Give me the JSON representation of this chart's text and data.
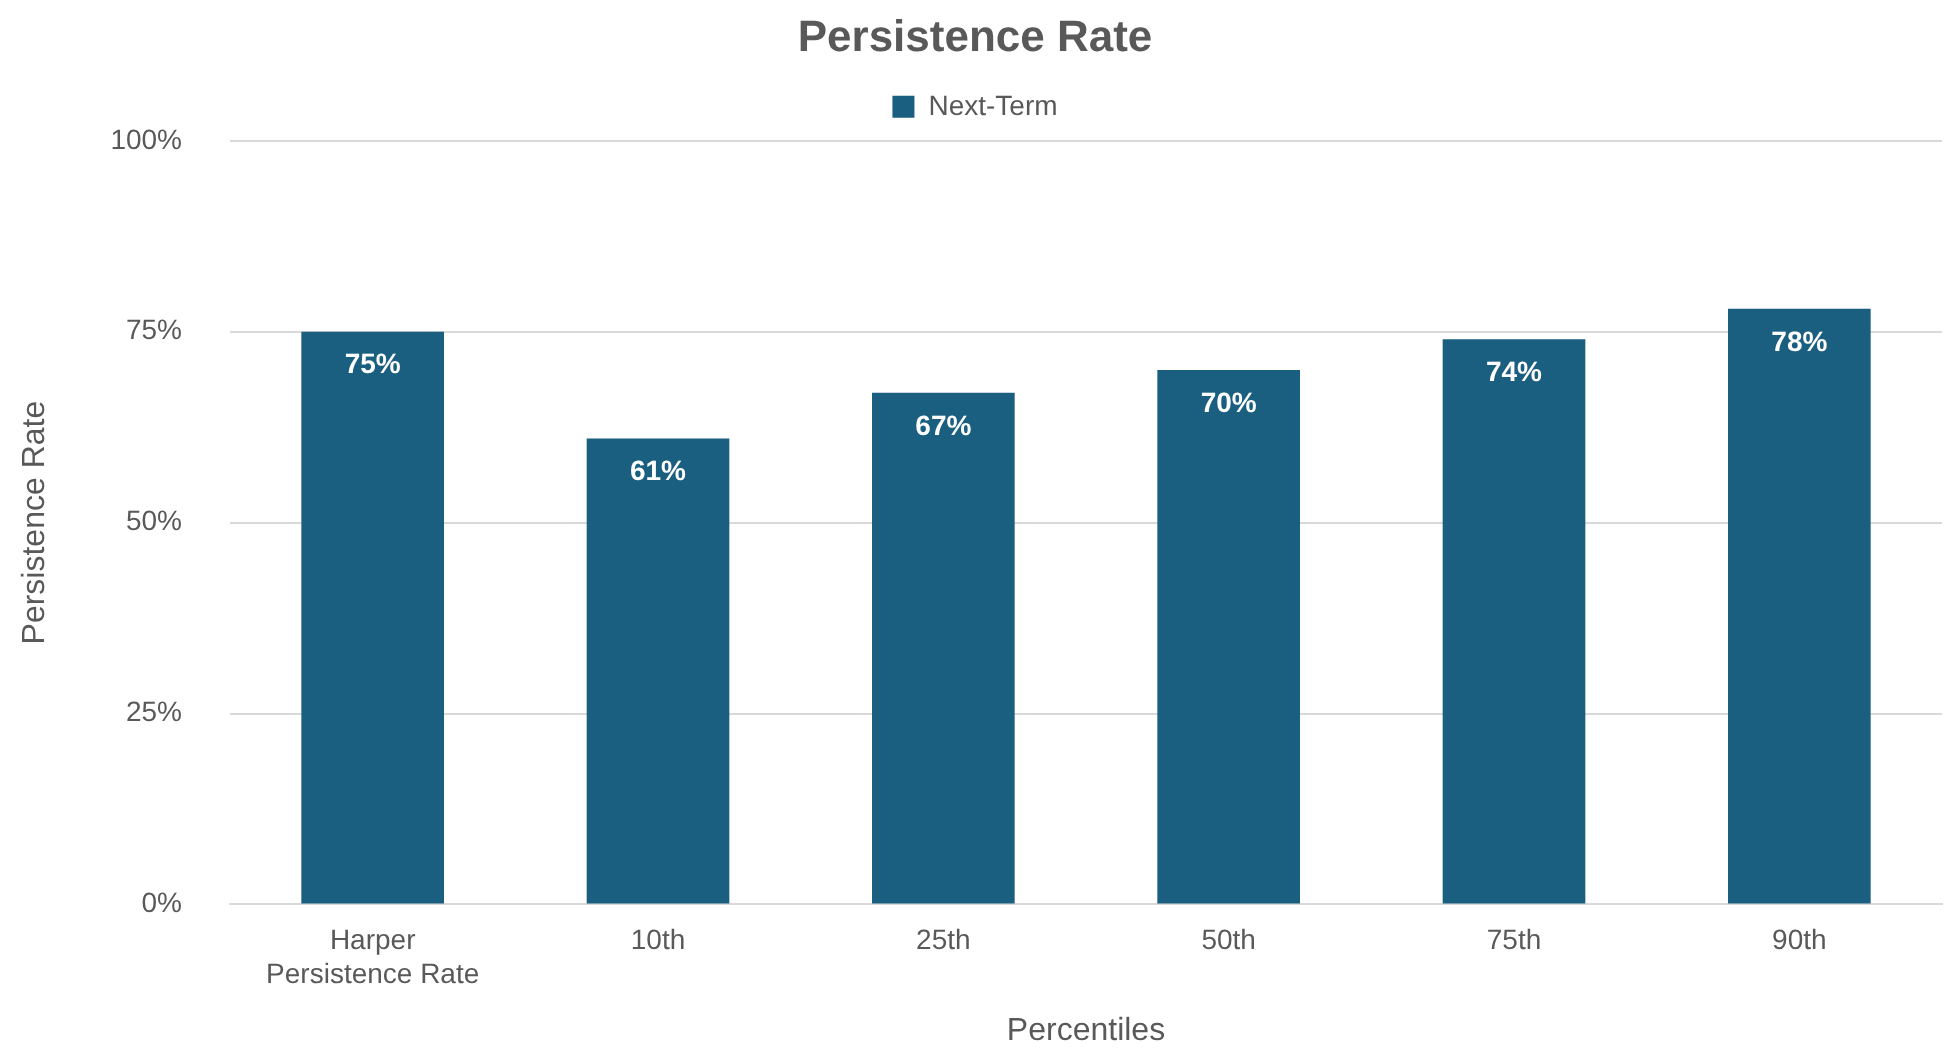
{
  "chart_data": {
    "type": "bar",
    "title": "Persistence Rate",
    "xlabel": "Percentiles",
    "ylabel": "Persistence Rate",
    "categories": [
      "Harper Persistence Rate",
      "10th",
      "25th",
      "50th",
      "75th",
      "90th"
    ],
    "series": [
      {
        "name": "Next-Term",
        "color": "#1a5e80",
        "values": [
          75,
          61,
          67,
          70,
          74,
          78
        ],
        "value_labels": [
          "75%",
          "61%",
          "67%",
          "70%",
          "74%",
          "78%"
        ]
      }
    ],
    "ylim": [
      0,
      100
    ],
    "yticks": [
      {
        "value": 0,
        "label": "0%"
      },
      {
        "value": 25,
        "label": "25%"
      },
      {
        "value": 50,
        "label": "50%"
      },
      {
        "value": 75,
        "label": "75%"
      },
      {
        "value": 100,
        "label": "100%"
      }
    ],
    "grid": "y",
    "legend": "top"
  }
}
